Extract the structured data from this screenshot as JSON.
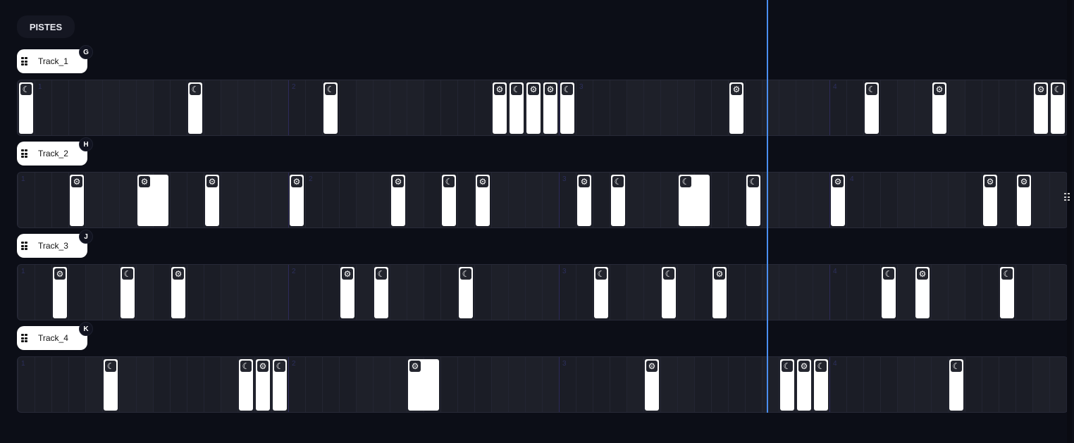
{
  "header": {
    "title": "PISTES"
  },
  "colors": {
    "playhead": "#4a8ef0",
    "clip": "#ffffff",
    "lane": "#1b1d26"
  },
  "bar_numbers": [
    "1",
    "2",
    "3",
    "4"
  ],
  "tracks": [
    {
      "name": "Track_1",
      "key": "G",
      "clips": [
        {
          "step": 0,
          "icon": "moon"
        },
        {
          "step": 10,
          "icon": "moon"
        },
        {
          "step": 18,
          "icon": "moon"
        },
        {
          "step": 28,
          "icon": "gear"
        },
        {
          "step": 29,
          "icon": "moon"
        },
        {
          "step": 30,
          "icon": "gear"
        },
        {
          "step": 31,
          "icon": "gear"
        },
        {
          "step": 32,
          "icon": "moon"
        },
        {
          "step": 42,
          "icon": "gear"
        },
        {
          "step": 50,
          "icon": "moon"
        },
        {
          "step": 54,
          "icon": "gear"
        },
        {
          "step": 60,
          "icon": "gear"
        },
        {
          "step": 61,
          "icon": "moon"
        }
      ]
    },
    {
      "name": "Track_2",
      "key": "H",
      "clips": [
        {
          "step": 3,
          "icon": "gear"
        },
        {
          "step": 7,
          "icon": "gear",
          "len": 2
        },
        {
          "step": 11,
          "icon": "gear"
        },
        {
          "step": 16,
          "icon": "gear"
        },
        {
          "step": 22,
          "icon": "gear"
        },
        {
          "step": 25,
          "icon": "moon"
        },
        {
          "step": 27,
          "icon": "gear"
        },
        {
          "step": 33,
          "icon": "gear"
        },
        {
          "step": 35,
          "icon": "moon"
        },
        {
          "step": 39,
          "icon": "moon",
          "len": 2
        },
        {
          "step": 43,
          "icon": "moon"
        },
        {
          "step": 48,
          "icon": "gear"
        },
        {
          "step": 57,
          "icon": "gear"
        },
        {
          "step": 59,
          "icon": "gear"
        }
      ]
    },
    {
      "name": "Track_3",
      "key": "J",
      "clips": [
        {
          "step": 2,
          "icon": "gear"
        },
        {
          "step": 6,
          "icon": "moon"
        },
        {
          "step": 9,
          "icon": "gear"
        },
        {
          "step": 19,
          "icon": "gear"
        },
        {
          "step": 21,
          "icon": "moon"
        },
        {
          "step": 26,
          "icon": "moon"
        },
        {
          "step": 34,
          "icon": "moon"
        },
        {
          "step": 38,
          "icon": "moon"
        },
        {
          "step": 41,
          "icon": "gear"
        },
        {
          "step": 51,
          "icon": "moon"
        },
        {
          "step": 53,
          "icon": "gear"
        },
        {
          "step": 58,
          "icon": "moon"
        }
      ]
    },
    {
      "name": "Track_4",
      "key": "K",
      "clips": [
        {
          "step": 5,
          "icon": "moon"
        },
        {
          "step": 13,
          "icon": "moon"
        },
        {
          "step": 14,
          "icon": "gear"
        },
        {
          "step": 15,
          "icon": "moon"
        },
        {
          "step": 23,
          "icon": "gear",
          "len": 2
        },
        {
          "step": 37,
          "icon": "gear"
        },
        {
          "step": 45,
          "icon": "moon"
        },
        {
          "step": 46,
          "icon": "gear"
        },
        {
          "step": 47,
          "icon": "moon"
        },
        {
          "step": 55,
          "icon": "moon"
        }
      ]
    }
  ]
}
